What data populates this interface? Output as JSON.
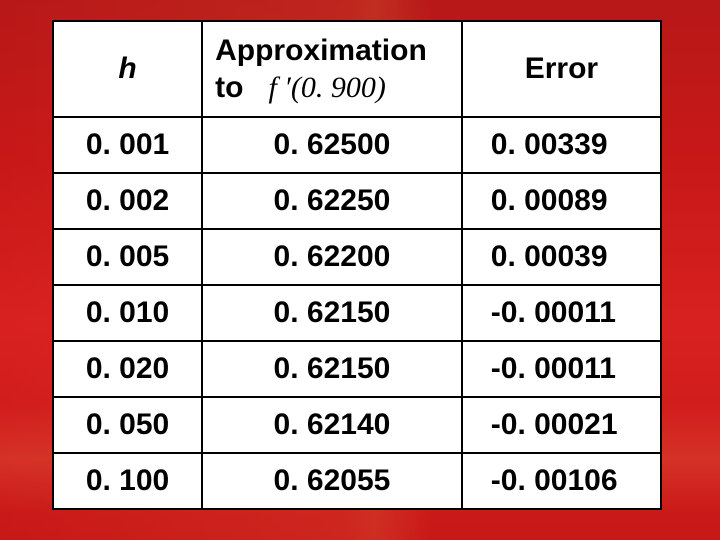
{
  "table": {
    "headers": {
      "h": "h",
      "approx_line1": "Approximation",
      "approx_line2_prefix": "to",
      "fprime_expr": "f ′(0. 900)",
      "error": "Error"
    },
    "rows": [
      {
        "h": "0. 001",
        "approx": "0. 62500",
        "error": "0. 00339"
      },
      {
        "h": "0. 002",
        "approx": "0. 62250",
        "error": "0. 00089"
      },
      {
        "h": "0. 005",
        "approx": "0. 62200",
        "error": "0. 00039"
      },
      {
        "h": "0. 010",
        "approx": "0. 62150",
        "error": "-0. 00011"
      },
      {
        "h": "0. 020",
        "approx": "0. 62150",
        "error": "-0. 00011"
      },
      {
        "h": "0. 050",
        "approx": "0. 62140",
        "error": "-0. 00021"
      },
      {
        "h": "0. 100",
        "approx": "0. 62055",
        "error": "-0. 00106"
      }
    ],
    "colors": {
      "background_slide": "#c81818",
      "table_bg": "#ffffff",
      "border": "#000000",
      "text": "#000000"
    },
    "fontsizes": {
      "cell": 30,
      "header": 30
    }
  }
}
